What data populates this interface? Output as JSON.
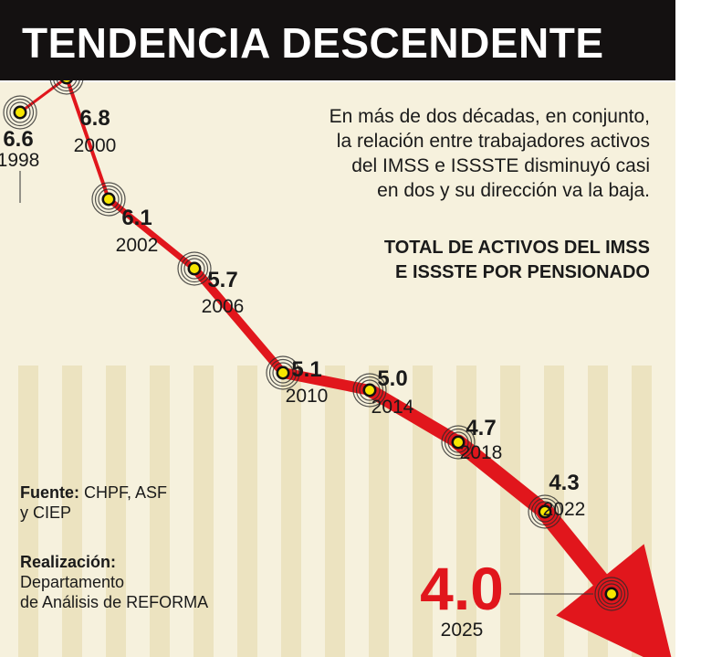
{
  "title": "TENDENCIA DESCENDENTE",
  "description": [
    "En más de dos décadas, en conjunto,",
    "la relación entre trabajadores activos",
    "del IMSS e ISSSTE disminuyó casi",
    "en dos y su dirección va la baja."
  ],
  "subtitle": [
    "TOTAL DE ACTIVOS DEL IMSS",
    "E ISSSTE POR PENSIONADO"
  ],
  "source": {
    "label": "Fuente:",
    "lines": [
      "CHPF, ASF",
      "y CIEP"
    ]
  },
  "credit": {
    "label": "Realización:",
    "lines": [
      "Departamento",
      "de Análisis de REFORMA"
    ]
  },
  "colors": {
    "title_bar": "#141111",
    "background": "#f6f1dd",
    "stripe": "#ece3c0",
    "line": "#e1161c",
    "point": "#f7e600",
    "label": "#1a1a1a"
  },
  "chart_data": {
    "type": "line",
    "title": "TOTAL DE ACTIVOS DEL IMSS E ISSSTE POR PENSIONADO",
    "x": [
      "1998",
      "2000",
      "2002",
      "2006",
      "2010",
      "2014",
      "2018",
      "2022",
      "2025"
    ],
    "values": [
      6.6,
      6.8,
      6.1,
      5.7,
      5.1,
      5.0,
      4.7,
      4.3,
      4.0
    ],
    "value_labels": [
      "6.6",
      "6.8",
      "6.1",
      "5.7",
      "5.1",
      "5.0",
      "4.7",
      "4.3",
      "4.0"
    ],
    "highlight_index": 8,
    "trend": "descending",
    "grid": false,
    "legend": "none"
  }
}
